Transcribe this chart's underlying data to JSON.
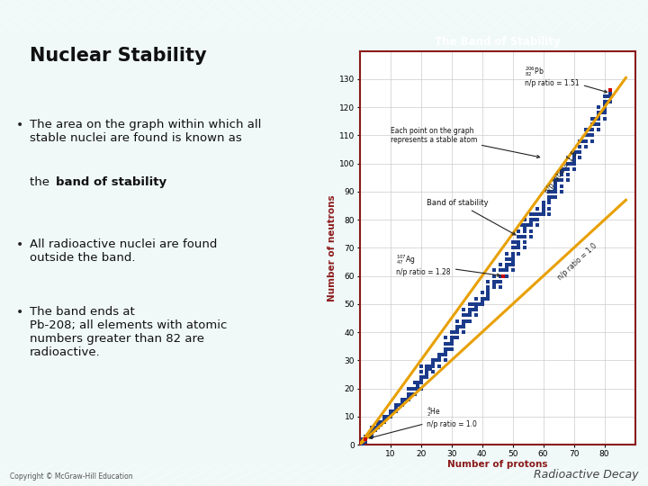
{
  "title": "Nuclear Stability",
  "slide_title": "The Band of Stability",
  "bg_color": "#f0f8f8",
  "stripe_color": "#6db8b8",
  "chart_bg": "#ffffff",
  "header_color": "#8b1a1a",
  "border_color": "#8b1a1a",
  "xlabel": "Number of protons",
  "ylabel": "Number of neutrons",
  "xlim": [
    0,
    90
  ],
  "ylim": [
    0,
    140
  ],
  "xticks": [
    10,
    20,
    30,
    40,
    50,
    60,
    70,
    80
  ],
  "yticks": [
    0,
    10,
    20,
    30,
    40,
    50,
    60,
    70,
    80,
    90,
    100,
    110,
    120,
    130
  ],
  "line_color": "#e8a000",
  "dot_color": "#1a3a8a",
  "pb_color": "#cc0000",
  "he_color": "#cc0000",
  "copyright": "Copyright © McGraw-Hill Education",
  "footer": "Radioactive Decay",
  "bullet1_pre": "The area on the graph within which all\nstable nuclei are found is known as\nthe ",
  "bullet1_bold": "band of stability",
  "bullet1_post": ".",
  "bullet2": "All radioactive nuclei are found\noutside the band.",
  "bullet3": "The band ends at\nPb-208; all elements with atomic\nnumbers greater than 82 are\nradioactive."
}
